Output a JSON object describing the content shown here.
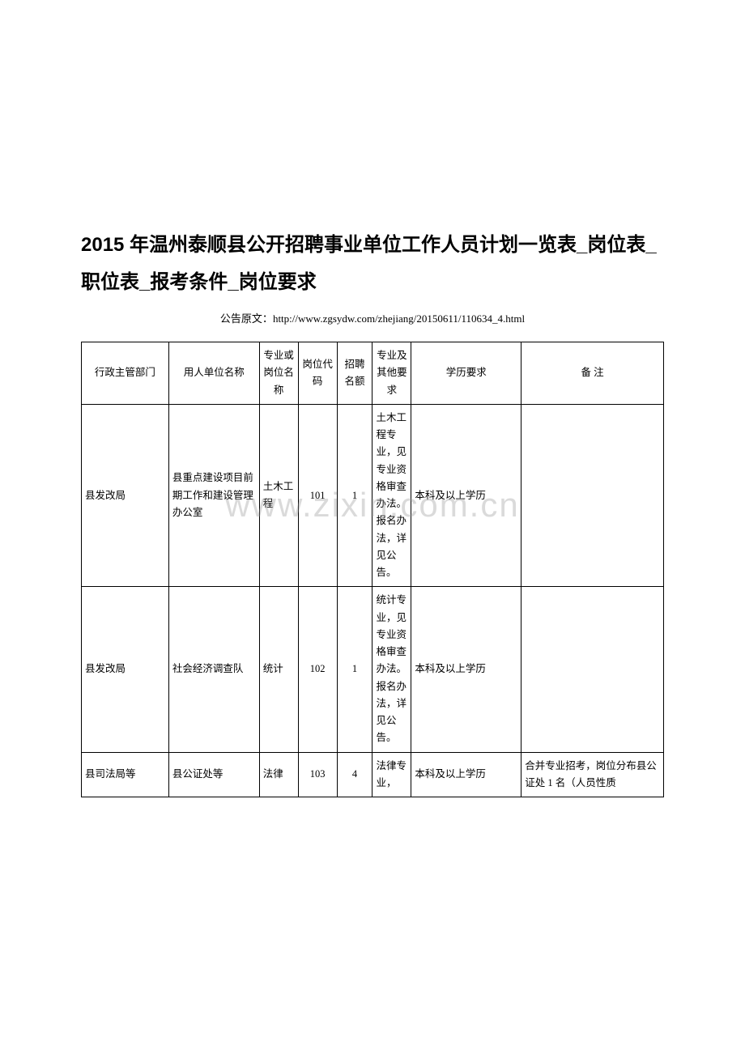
{
  "title": "2015 年温州泰顺县公开招聘事业单位工作人员计划一览表_岗位表_职位表_报考条件_岗位要求",
  "source_label": "公告原文：",
  "source_url": "http://www.zgsydw.com/zhejiang/20150611/110634_4.html",
  "watermark": "www.zixin.com.cn",
  "table": {
    "headers": [
      "行政主管部门",
      "用人单位名称",
      "专业或岗位名称",
      "岗位代码",
      "招聘名额",
      "专业及其他要求",
      "学历要求",
      "备 注"
    ],
    "rows": [
      {
        "dept": "县发改局",
        "unit": "县重点建设项目前期工作和建设管理办公室",
        "major": "土木工程",
        "code": "101",
        "count": "1",
        "req": "土木工程专业，见专业资格审查办法。报名办法，详见公告。",
        "edu": "本科及以上学历",
        "note": ""
      },
      {
        "dept": "县发改局",
        "unit": "社会经济调查队",
        "major": "统计",
        "code": "102",
        "count": "1",
        "req": "统计专业，见专业资格审查办法。报名办法，详见公告。",
        "edu": "本科及以上学历",
        "note": ""
      },
      {
        "dept": "县司法局等",
        "unit": "县公证处等",
        "major": "法律",
        "code": "103",
        "count": "4",
        "req": "法律专业，",
        "edu": "本科及以上学历",
        "note": "合并专业招考，岗位分布县公证处 1 名（人员性质"
      }
    ]
  }
}
